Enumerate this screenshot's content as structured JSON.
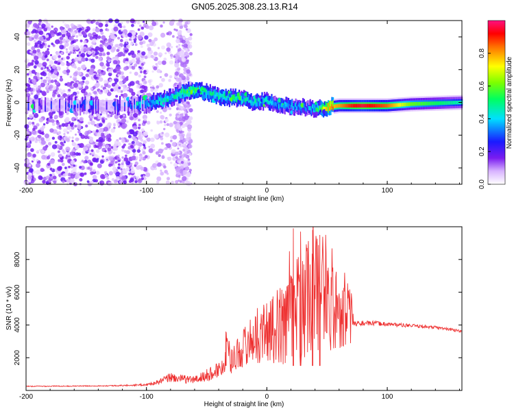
{
  "chart_data": [
    {
      "type": "heatmap",
      "title": "GN05.2025.308.23.13.R14",
      "xlabel": "Height of straight line (km)",
      "ylabel": "Frequency (Hz)",
      "xlim": [
        -200,
        162
      ],
      "ylim": [
        -50,
        50
      ],
      "xticks": [
        -200,
        -100,
        0,
        100
      ],
      "xtick_labels": [
        "-200",
        "-100",
        "0",
        "100"
      ],
      "yticks": [
        -40,
        -20,
        0,
        20,
        40
      ],
      "ytick_labels": [
        "-40",
        "-20",
        "0",
        "20",
        "40"
      ],
      "colorbar": {
        "label": "Normalized spectral amplitude",
        "range": [
          0,
          1
        ],
        "ticks": [
          0.0,
          0.2,
          0.4,
          0.6,
          0.8
        ],
        "tick_labels": [
          "0.0",
          "0.2",
          "0.4",
          "0.6",
          "0.8"
        ]
      },
      "ridge": {
        "x": [
          -200,
          -150,
          -120,
          -100,
          -80,
          -70,
          -60,
          -55,
          -50,
          -40,
          -30,
          -20,
          -10,
          0,
          10,
          20,
          30,
          40,
          50,
          60,
          70,
          80,
          100,
          120,
          162
        ],
        "frequency": [
          -2,
          -2,
          -2,
          -1,
          3,
          6,
          8,
          7,
          6,
          4,
          3,
          2,
          0,
          1,
          -1,
          -2,
          -3,
          -4,
          -3,
          -2,
          -2,
          -2,
          -2,
          -1,
          0
        ],
        "amplitude": [
          0.15,
          0.15,
          0.15,
          0.3,
          0.35,
          0.45,
          0.5,
          0.45,
          0.35,
          0.4,
          0.4,
          0.35,
          0.35,
          0.35,
          0.3,
          0.3,
          0.25,
          0.35,
          0.75,
          0.8,
          0.9,
          0.95,
          0.85,
          0.6,
          0.45
        ]
      }
    },
    {
      "type": "line",
      "xlabel": "Height of straight line (km)",
      "ylabel": "SNR (10 * v/v)",
      "xlim": [
        -200,
        162
      ],
      "ylim": [
        0,
        10000
      ],
      "xticks": [
        -200,
        -100,
        0,
        100
      ],
      "xtick_labels": [
        "-200",
        "-100",
        "0",
        "100"
      ],
      "yticks": [
        2000,
        4000,
        6000,
        8000
      ],
      "ytick_labels": [
        "2000",
        "4000",
        "6000",
        "8000"
      ],
      "series": [
        {
          "name": "SNR",
          "color": "#ee3030",
          "x": [
            -200,
            -180,
            -160,
            -140,
            -120,
            -100,
            -90,
            -80,
            -70,
            -60,
            -50,
            -35,
            -34,
            -30,
            -20,
            -10,
            0,
            10,
            20,
            30,
            40,
            50,
            60,
            70,
            72,
            80,
            90,
            100,
            110,
            120,
            130,
            140,
            150,
            162
          ],
          "y": [
            250,
            260,
            270,
            280,
            300,
            350,
            500,
            800,
            700,
            650,
            900,
            1500,
            3600,
            1800,
            2600,
            3300,
            3600,
            3900,
            4600,
            5600,
            5900,
            5200,
            4900,
            4600,
            4100,
            4100,
            4100,
            4050,
            4000,
            3950,
            3900,
            3850,
            3750,
            3600
          ],
          "noise": [
            30,
            30,
            30,
            30,
            40,
            60,
            150,
            300,
            250,
            250,
            400,
            600,
            300,
            800,
            1200,
            1600,
            2000,
            2400,
            2800,
            3600,
            3800,
            3000,
            2400,
            1800,
            180,
            150,
            140,
            130,
            120,
            110,
            110,
            100,
            100,
            100
          ],
          "peaks": [
            {
              "x": 22,
              "y": 9900
            },
            {
              "x": 28,
              "y": 9700
            },
            {
              "x": 38,
              "y": 9800
            },
            {
              "x": 44,
              "y": 9500
            },
            {
              "x": -34,
              "y": 3600
            }
          ]
        }
      ]
    }
  ]
}
